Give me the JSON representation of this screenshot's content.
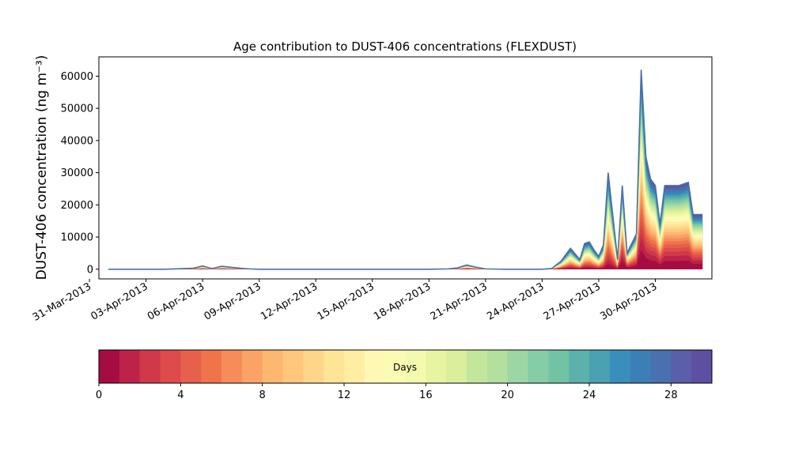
{
  "chart_data": {
    "type": "area",
    "title": "Age contribution to DUST-406 concentrations (FLEXDUST)",
    "xlabel": "",
    "ylabel": "DUST-406 concentration (ng m⁻³)",
    "ylim": [
      -3000,
      66000
    ],
    "yticks": [
      0,
      10000,
      20000,
      30000,
      40000,
      50000,
      60000
    ],
    "xlim": [
      "2013-03-31T12:00",
      "2013-05-03T00:00"
    ],
    "xtick_labels": [
      "31-Mar-2013",
      "03-Apr-2013",
      "06-Apr-2013",
      "09-Apr-2013",
      "12-Apr-2013",
      "15-Apr-2013",
      "18-Apr-2013",
      "21-Apr-2013",
      "24-Apr-2013",
      "27-Apr-2013",
      "30-Apr-2013"
    ],
    "grid": false,
    "stacked_by": "particle age (days)",
    "total_series": {
      "x": [
        "2013-04-01T00:00",
        "2013-04-02T00:00",
        "2013-04-04T00:00",
        "2013-04-05T12:00",
        "2013-04-06T00:00",
        "2013-04-06T12:00",
        "2013-04-07T00:00",
        "2013-04-07T12:00",
        "2013-04-08T00:00",
        "2013-04-08T12:00",
        "2013-04-09T00:00",
        "2013-04-12T00:00",
        "2013-04-15T00:00",
        "2013-04-18T00:00",
        "2013-04-19T00:00",
        "2013-04-19T12:00",
        "2013-04-20T00:00",
        "2013-04-20T12:00",
        "2013-04-21T00:00",
        "2013-04-22T00:00",
        "2013-04-24T00:00",
        "2013-04-24T12:00",
        "2013-04-25T00:00",
        "2013-04-25T12:00",
        "2013-04-26T00:00",
        "2013-04-26T06:00",
        "2013-04-26T12:00",
        "2013-04-26T18:00",
        "2013-04-27T00:00",
        "2013-04-27T06:00",
        "2013-04-27T12:00",
        "2013-04-28T00:00",
        "2013-04-28T06:00",
        "2013-04-28T12:00",
        "2013-04-29T00:00",
        "2013-04-29T06:00",
        "2013-04-29T12:00",
        "2013-04-29T18:00",
        "2013-04-30T00:00",
        "2013-04-30T06:00",
        "2013-04-30T12:00",
        "2013-05-01T00:00",
        "2013-05-01T06:00",
        "2013-05-01T12:00",
        "2013-05-01T18:00",
        "2013-05-02T00:00",
        "2013-05-02T12:00"
      ],
      "y": [
        0,
        0,
        0,
        300,
        1000,
        200,
        900,
        600,
        300,
        100,
        0,
        0,
        0,
        0,
        100,
        400,
        1300,
        600,
        100,
        0,
        0,
        200,
        2500,
        6500,
        3000,
        8000,
        8500,
        6000,
        4000,
        7500,
        30000,
        3000,
        26000,
        5000,
        11000,
        62000,
        35000,
        28000,
        26000,
        14000,
        26000,
        26000,
        26000,
        26500,
        27000,
        17000,
        17000
      ]
    },
    "colorbar": {
      "label": "Days",
      "min": 0,
      "max": 30,
      "ticks": [
        0,
        4,
        8,
        12,
        16,
        20,
        24,
        28
      ],
      "colors": [
        "#a50d42",
        "#be2248",
        "#d0394a",
        "#dd4b4a",
        "#e7604b",
        "#ef744b",
        "#f68c59",
        "#fba266",
        "#fdb76f",
        "#fec77c",
        "#fed68a",
        "#fee497",
        "#feeda2",
        "#fff8b5",
        "#fbfcb4",
        "#f3f9ae",
        "#e7f4a1",
        "#d9ef9b",
        "#c3e69d",
        "#b3e09f",
        "#9cd6a4",
        "#84cda6",
        "#71c3a4",
        "#5cb1ac",
        "#49a1b2",
        "#3a8ebb",
        "#3c7fb6",
        "#4970af",
        "#595fa8",
        "#5e4fa2"
      ]
    }
  }
}
